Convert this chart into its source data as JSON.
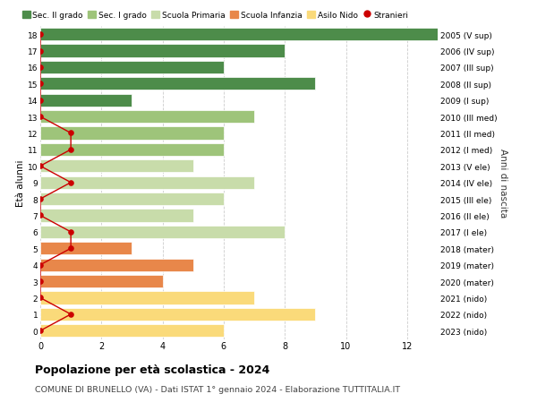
{
  "ages": [
    0,
    1,
    2,
    3,
    4,
    5,
    6,
    7,
    8,
    9,
    10,
    11,
    12,
    13,
    14,
    15,
    16,
    17,
    18
  ],
  "right_labels": [
    "2023 (nido)",
    "2022 (nido)",
    "2021 (nido)",
    "2020 (mater)",
    "2019 (mater)",
    "2018 (mater)",
    "2017 (I ele)",
    "2016 (II ele)",
    "2015 (III ele)",
    "2014 (IV ele)",
    "2013 (V ele)",
    "2012 (I med)",
    "2011 (II med)",
    "2010 (III med)",
    "2009 (I sup)",
    "2008 (II sup)",
    "2007 (III sup)",
    "2006 (IV sup)",
    "2005 (V sup)"
  ],
  "bar_values": [
    6,
    9,
    7,
    4,
    5,
    3,
    8,
    5,
    6,
    7,
    5,
    6,
    6,
    7,
    3,
    9,
    6,
    8,
    13
  ],
  "bar_colors": [
    "#FADA7A",
    "#FADA7A",
    "#FADA7A",
    "#E8874A",
    "#E8874A",
    "#E8874A",
    "#C8DCAA",
    "#C8DCAA",
    "#C8DCAA",
    "#C8DCAA",
    "#C8DCAA",
    "#9EC47A",
    "#9EC47A",
    "#9EC47A",
    "#4D8C4A",
    "#4D8C4A",
    "#4D8C4A",
    "#4D8C4A",
    "#4D8C4A"
  ],
  "stranieri_values": [
    0,
    1,
    0,
    0,
    0,
    1,
    1,
    0,
    0,
    1,
    0,
    1,
    1,
    0,
    0,
    0,
    0,
    0,
    0
  ],
  "legend_labels": [
    "Sec. II grado",
    "Sec. I grado",
    "Scuola Primaria",
    "Scuola Infanzia",
    "Asilo Nido",
    "Stranieri"
  ],
  "legend_colors": [
    "#4D8C4A",
    "#9EC47A",
    "#C8DCAA",
    "#E8874A",
    "#FADA7A",
    "#CC0000"
  ],
  "title": "Popolazione per età scolastica - 2024",
  "subtitle": "COMUNE DI BRUNELLO (VA) - Dati ISTAT 1° gennaio 2024 - Elaborazione TUTTITALIA.IT",
  "ylabel_left": "Età alunni",
  "ylabel_right": "Anni di nascita",
  "xticks": [
    0,
    2,
    4,
    6,
    8,
    10,
    12
  ],
  "xlim": [
    0,
    13
  ],
  "ylim": [
    -0.5,
    18.5
  ],
  "bg_color": "#FFFFFF",
  "grid_color": "#CCCCCC"
}
